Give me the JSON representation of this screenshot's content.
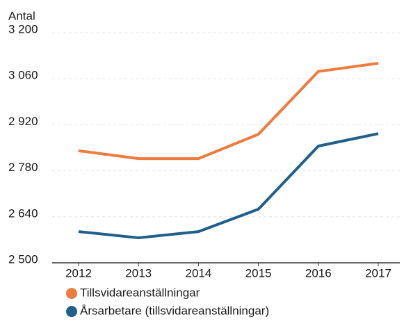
{
  "chart_data": {
    "type": "line",
    "y_label": "Antal",
    "categories": [
      "2012",
      "2013",
      "2014",
      "2015",
      "2016",
      "2017"
    ],
    "series": [
      {
        "name": "Tillsvidareanställningar",
        "color": "#f07b3f",
        "values": [
          2841,
          2817,
          2817,
          2891,
          3082,
          3107
        ]
      },
      {
        "name": "Årsarbetare (tillsvidareanställningar)",
        "color": "#1f5f8b",
        "values": [
          2595,
          2576,
          2595,
          2663,
          2855,
          2893
        ]
      }
    ],
    "ylim": [
      2500,
      3200
    ],
    "yticks": [
      {
        "value": 2500,
        "label": "2 500"
      },
      {
        "value": 2640,
        "label": "2 640"
      },
      {
        "value": 2780,
        "label": "2 780"
      },
      {
        "value": 2920,
        "label": "2 920"
      },
      {
        "value": 3060,
        "label": "3 060"
      },
      {
        "value": 3200,
        "label": "3 200"
      }
    ],
    "grid": true
  }
}
